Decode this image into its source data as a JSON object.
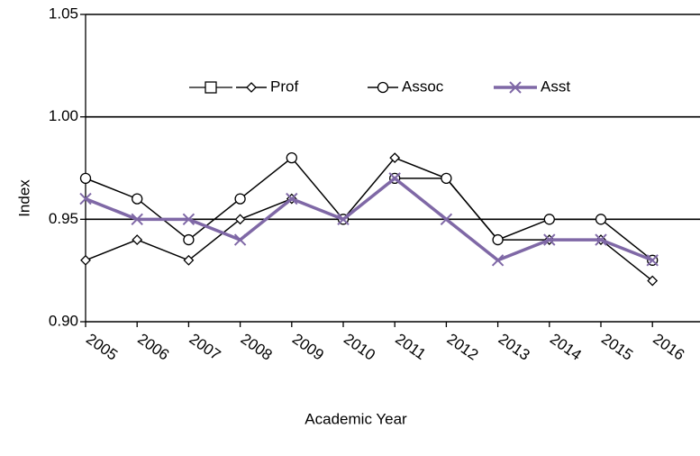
{
  "chart_data": {
    "type": "line",
    "x_label": "Academic Year",
    "y_label": "Index",
    "categories": [
      "2005",
      "2006",
      "2007",
      "2008",
      "2009",
      "2010",
      "2011",
      "2012",
      "2013",
      "2014",
      "2015",
      "2016"
    ],
    "series": [
      {
        "name": "Prof",
        "color": "#000000",
        "marker": "diamond",
        "values": [
          0.93,
          0.94,
          0.93,
          0.95,
          0.96,
          0.95,
          0.98,
          0.97,
          0.94,
          0.94,
          0.94,
          0.92
        ]
      },
      {
        "name": "Assoc",
        "color": "#000000",
        "marker": "circle",
        "values": [
          0.97,
          0.96,
          0.94,
          0.96,
          0.98,
          0.95,
          0.97,
          0.97,
          0.94,
          0.95,
          0.95,
          0.93
        ]
      },
      {
        "name": "Asst",
        "color": "#7f68a6",
        "marker": "x",
        "values": [
          0.96,
          0.95,
          0.95,
          0.94,
          0.96,
          0.95,
          0.97,
          0.95,
          0.93,
          0.94,
          0.94,
          0.93
        ]
      }
    ],
    "ylim": [
      0.9,
      1.05
    ],
    "yticks": [
      {
        "value": 0.9,
        "label": "0.90"
      },
      0.95,
      {
        "value": 1,
        "label": "1.00"
      },
      1.05
    ],
    "grid": true
  }
}
